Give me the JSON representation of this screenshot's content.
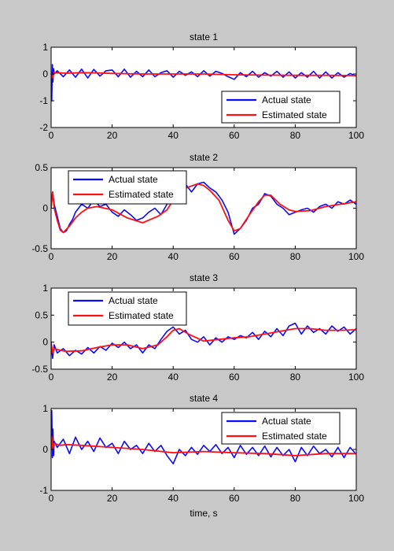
{
  "figure": {
    "background": "#c8c8c8",
    "xlabel": "time, s"
  },
  "colors": {
    "actual": "#0a0aff",
    "estimated": "#ff1010",
    "axes": "#000000",
    "plot_bg": "#ffffff"
  },
  "chart_data": [
    {
      "type": "line",
      "title": "state 1",
      "xlabel": "",
      "xlim": [
        0,
        100
      ],
      "ylim": [
        -2,
        1
      ],
      "xticks": [
        0,
        20,
        40,
        60,
        80,
        100
      ],
      "yticks": [
        -2,
        -1,
        0,
        1
      ],
      "legend": "bottom-right",
      "series": [
        {
          "name": "Actual state",
          "color": "#0a0aff",
          "x": [
            0,
            0.2,
            0.4,
            0.6,
            0.8,
            1,
            2,
            4,
            6,
            8,
            10,
            12,
            14,
            16,
            18,
            20,
            22,
            24,
            26,
            28,
            30,
            32,
            34,
            36,
            38,
            40,
            42,
            44,
            46,
            48,
            50,
            52,
            54,
            56,
            58,
            60,
            62,
            64,
            66,
            68,
            70,
            72,
            74,
            76,
            78,
            80,
            82,
            84,
            86,
            88,
            90,
            92,
            94,
            96,
            98,
            100
          ],
          "y": [
            0,
            -1.0,
            0.35,
            -0.3,
            0.2,
            0.0,
            0.12,
            -0.1,
            0.15,
            -0.12,
            0.18,
            -0.15,
            0.17,
            -0.08,
            0.12,
            0.15,
            -0.1,
            0.18,
            -0.12,
            0.1,
            -0.1,
            0.15,
            -0.1,
            0.05,
            0.12,
            -0.12,
            0.1,
            -0.05,
            0.08,
            -0.1,
            0.12,
            -0.08,
            0.1,
            0.02,
            -0.1,
            -0.2,
            0.05,
            -0.1,
            0.1,
            -0.12,
            0.05,
            -0.08,
            0.1,
            -0.12,
            0.08,
            -0.15,
            0.05,
            -0.12,
            0.1,
            -0.15,
            0.08,
            -0.15,
            0.05,
            -0.12,
            0.02,
            -0.08
          ]
        },
        {
          "name": "Estimated state",
          "color": "#ff1010",
          "x": [
            0,
            0.4,
            1,
            5,
            10,
            15,
            20,
            30,
            40,
            50,
            60,
            70,
            80,
            90,
            100
          ],
          "y": [
            0,
            -0.15,
            0.05,
            0.03,
            0.05,
            0.04,
            0.02,
            0.0,
            0.0,
            0.0,
            -0.03,
            -0.04,
            -0.05,
            -0.05,
            -0.06
          ]
        }
      ]
    },
    {
      "type": "line",
      "title": "state 2",
      "xlabel": "",
      "xlim": [
        0,
        100
      ],
      "ylim": [
        -0.5,
        0.5
      ],
      "xticks": [
        0,
        20,
        40,
        60,
        80,
        100
      ],
      "yticks": [
        -0.5,
        0,
        0.5
      ],
      "legend": "top-left",
      "series": [
        {
          "name": "Actual state",
          "color": "#0a0aff",
          "x": [
            0,
            0.5,
            1,
            2,
            3,
            4,
            5,
            6,
            7,
            8,
            10,
            12,
            14,
            16,
            18,
            20,
            22,
            24,
            26,
            28,
            30,
            32,
            34,
            36,
            38,
            40,
            42,
            44,
            46,
            48,
            50,
            52,
            54,
            56,
            58,
            60,
            62,
            64,
            66,
            68,
            70,
            72,
            74,
            76,
            78,
            80,
            82,
            84,
            86,
            88,
            90,
            92,
            94,
            96,
            98,
            100
          ],
          "y": [
            0,
            0.2,
            0.05,
            -0.1,
            -0.25,
            -0.3,
            -0.28,
            -0.2,
            -0.14,
            -0.05,
            0.05,
            0.0,
            0.1,
            0.02,
            0.05,
            -0.05,
            -0.1,
            -0.02,
            -0.08,
            -0.15,
            -0.12,
            -0.05,
            0.0,
            -0.08,
            0.05,
            0.25,
            0.15,
            0.3,
            0.2,
            0.3,
            0.32,
            0.25,
            0.2,
            0.1,
            -0.05,
            -0.32,
            -0.25,
            -0.15,
            0.0,
            0.05,
            0.18,
            0.15,
            0.05,
            0.0,
            -0.08,
            -0.05,
            -0.02,
            0.0,
            -0.05,
            0.02,
            0.05,
            0.0,
            0.08,
            0.05,
            0.1,
            0.05
          ]
        },
        {
          "name": "Estimated state",
          "color": "#ff1010",
          "x": [
            0,
            0.5,
            1,
            2,
            3,
            4,
            6,
            8,
            10,
            12,
            15,
            20,
            25,
            30,
            35,
            38,
            40,
            42,
            45,
            48,
            50,
            52,
            55,
            58,
            60,
            62,
            65,
            68,
            70,
            72,
            75,
            78,
            80,
            85,
            90,
            95,
            100
          ],
          "y": [
            0,
            0.2,
            0.0,
            -0.15,
            -0.27,
            -0.3,
            -0.22,
            -0.12,
            -0.05,
            0.0,
            0.02,
            -0.02,
            -0.12,
            -0.18,
            -0.1,
            -0.02,
            0.1,
            0.22,
            0.26,
            0.3,
            0.28,
            0.22,
            0.1,
            -0.15,
            -0.28,
            -0.25,
            -0.08,
            0.08,
            0.16,
            0.16,
            0.05,
            -0.02,
            -0.04,
            -0.03,
            0.02,
            0.05,
            0.08
          ]
        }
      ]
    },
    {
      "type": "line",
      "title": "state 3",
      "xlabel": "",
      "xlim": [
        0,
        100
      ],
      "ylim": [
        -0.5,
        1
      ],
      "xticks": [
        0,
        20,
        40,
        60,
        80,
        100
      ],
      "yticks": [
        -0.5,
        0,
        0.5,
        1
      ],
      "legend": "top-left",
      "series": [
        {
          "name": "Actual state",
          "color": "#0a0aff",
          "x": [
            0,
            0.5,
            1,
            2,
            4,
            6,
            8,
            10,
            12,
            14,
            16,
            18,
            20,
            22,
            24,
            26,
            28,
            30,
            32,
            34,
            36,
            38,
            40,
            42,
            44,
            46,
            48,
            50,
            52,
            54,
            56,
            58,
            60,
            62,
            64,
            66,
            68,
            70,
            72,
            74,
            76,
            78,
            80,
            82,
            84,
            86,
            88,
            90,
            92,
            94,
            96,
            98,
            100
          ],
          "y": [
            0,
            -0.3,
            -0.05,
            -0.2,
            -0.12,
            -0.25,
            -0.15,
            -0.22,
            -0.1,
            -0.2,
            -0.08,
            -0.15,
            -0.02,
            -0.1,
            0.0,
            -0.12,
            -0.05,
            -0.2,
            -0.05,
            -0.12,
            0.05,
            0.2,
            0.28,
            0.15,
            0.22,
            0.05,
            0.0,
            0.1,
            -0.05,
            0.08,
            0.0,
            0.1,
            0.05,
            0.12,
            0.08,
            0.18,
            0.05,
            0.2,
            0.1,
            0.25,
            0.12,
            0.3,
            0.35,
            0.15,
            0.3,
            0.18,
            0.25,
            0.15,
            0.3,
            0.2,
            0.28,
            0.15,
            0.25
          ]
        },
        {
          "name": "Estimated state",
          "color": "#ff1010",
          "x": [
            0,
            0.5,
            1,
            3,
            5,
            10,
            15,
            20,
            25,
            30,
            35,
            38,
            40,
            42,
            45,
            50,
            55,
            60,
            65,
            70,
            75,
            80,
            85,
            90,
            95,
            100
          ],
          "y": [
            0,
            -0.2,
            -0.12,
            -0.15,
            -0.17,
            -0.16,
            -0.1,
            -0.05,
            -0.05,
            -0.12,
            -0.05,
            0.1,
            0.22,
            0.25,
            0.15,
            0.02,
            0.05,
            0.08,
            0.1,
            0.15,
            0.2,
            0.25,
            0.25,
            0.22,
            0.22,
            0.23
          ]
        }
      ]
    },
    {
      "type": "line",
      "title": "state 4",
      "xlabel": "time, s",
      "xlim": [
        0,
        100
      ],
      "ylim": [
        -1,
        1
      ],
      "xticks": [
        0,
        20,
        40,
        60,
        80,
        100
      ],
      "yticks": [
        -1,
        0,
        1
      ],
      "legend": "top-right",
      "series": [
        {
          "name": "Actual state",
          "color": "#0a0aff",
          "x": [
            0,
            0.2,
            0.4,
            0.6,
            0.8,
            1,
            2,
            4,
            6,
            8,
            10,
            12,
            14,
            16,
            18,
            20,
            22,
            24,
            26,
            28,
            30,
            32,
            34,
            36,
            38,
            40,
            42,
            44,
            46,
            48,
            50,
            52,
            54,
            56,
            58,
            60,
            62,
            64,
            66,
            68,
            70,
            72,
            74,
            76,
            78,
            80,
            82,
            84,
            86,
            88,
            90,
            92,
            94,
            96,
            98,
            100
          ],
          "y": [
            0,
            0.95,
            -0.2,
            0.5,
            -0.15,
            0.2,
            0.05,
            0.25,
            -0.1,
            0.3,
            0.0,
            0.2,
            -0.05,
            0.28,
            0.05,
            0.15,
            -0.1,
            0.2,
            0.0,
            0.1,
            -0.1,
            0.15,
            -0.05,
            0.1,
            -0.15,
            -0.35,
            0.0,
            -0.15,
            0.05,
            -0.12,
            0.1,
            -0.05,
            0.12,
            -0.1,
            0.05,
            -0.2,
            0.1,
            -0.12,
            0.05,
            -0.15,
            0.08,
            -0.18,
            0.05,
            -0.15,
            0.0,
            -0.3,
            0.05,
            -0.15,
            0.08,
            -0.1,
            0.0,
            -0.18,
            0.05,
            -0.2,
            0.05,
            -0.12
          ]
        },
        {
          "name": "Estimated state",
          "color": "#ff1010",
          "x": [
            0,
            0.3,
            0.6,
            1,
            3,
            5,
            10,
            20,
            30,
            40,
            50,
            60,
            70,
            80,
            90,
            100
          ],
          "y": [
            0,
            0.3,
            0.0,
            0.15,
            0.1,
            0.12,
            0.1,
            0.05,
            0.0,
            -0.08,
            -0.05,
            -0.08,
            -0.1,
            -0.15,
            -0.1,
            -0.1
          ]
        }
      ]
    }
  ]
}
